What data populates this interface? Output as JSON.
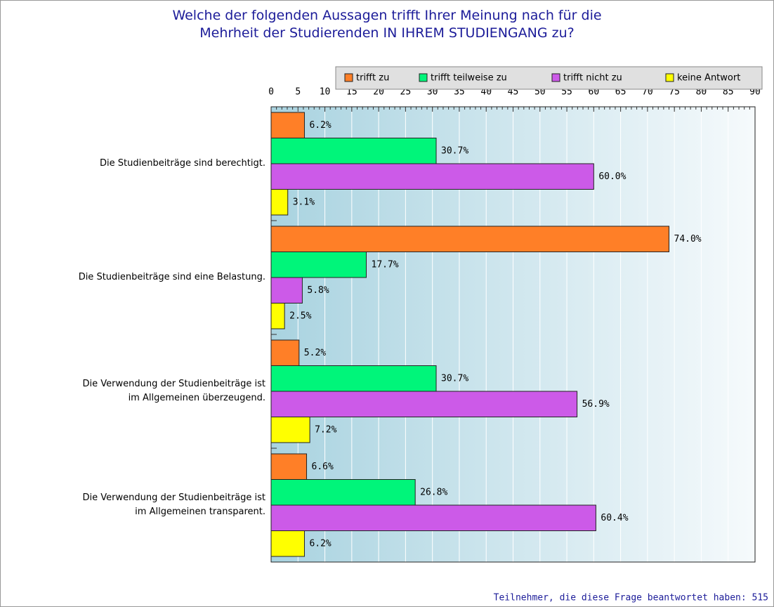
{
  "chart_data": {
    "type": "bar",
    "orientation": "horizontal",
    "title": "Welche der folgenden Aussagen trifft Ihrer Meinung nach für die\nMehrheit der Studierenden IN IHREM STUDIENGANG zu?",
    "categories": [
      "Die Studienbeiträge sind berechtigt.",
      "Die Studienbeiträge sind eine Belastung.",
      "Die Verwendung der Studienbeiträge ist\nim Allgemeinen überzeugend.",
      "Die Verwendung der Studienbeiträge ist\nim Allgemeinen transparent."
    ],
    "series": [
      {
        "name": "trifft zu",
        "color": "#ff7f27",
        "values": [
          6.2,
          74.0,
          5.2,
          6.6
        ],
        "value_labels": [
          "6.2%",
          "74.0%",
          "5.2%",
          "6.6%"
        ]
      },
      {
        "name": "trifft teilweise zu",
        "color": "#00f57a",
        "values": [
          30.7,
          17.7,
          30.7,
          26.8
        ],
        "value_labels": [
          "30.7%",
          "17.7%",
          "30.7%",
          "26.8%"
        ]
      },
      {
        "name": "trifft nicht zu",
        "color": "#cc5ae8",
        "values": [
          60.0,
          5.8,
          56.9,
          60.4
        ],
        "value_labels": [
          "60.0%",
          "5.8%",
          "56.9%",
          "60.4%"
        ]
      },
      {
        "name": "keine Antwort",
        "color": "#ffff00",
        "values": [
          3.1,
          2.5,
          7.2,
          6.2
        ],
        "value_labels": [
          "3.1%",
          "2.5%",
          "7.2%",
          "6.2%"
        ]
      }
    ],
    "xlim": [
      0,
      90
    ],
    "xticks": [
      0,
      5,
      10,
      15,
      20,
      25,
      30,
      35,
      40,
      45,
      50,
      55,
      60,
      65,
      70,
      75,
      80,
      85,
      90
    ],
    "grid": true,
    "footer": "Teilnehmer, die diese Frage beantwortet haben: 515"
  }
}
